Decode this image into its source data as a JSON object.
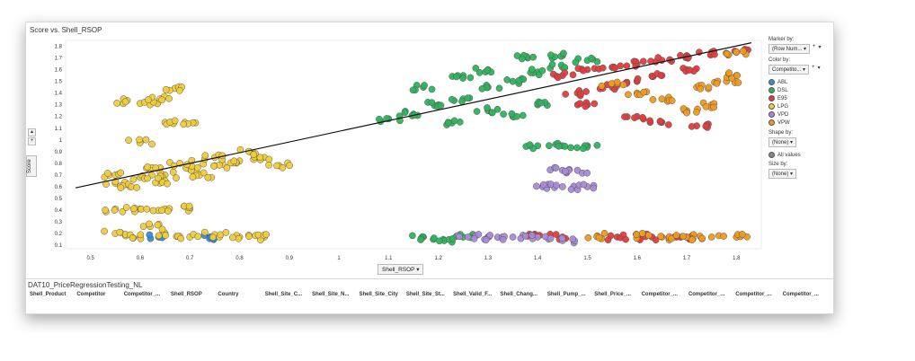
{
  "chart_data": {
    "type": "scatter",
    "title": "Score vs. Shell_RSOP",
    "xlabel": "Shell_RSOP",
    "ylabel": "Score",
    "xlim": [
      0.45,
      1.85
    ],
    "ylim": [
      0.07,
      1.85
    ],
    "x_ticks": [
      "0.5",
      "0.6",
      "0.7",
      "0.8",
      "0.9",
      "1",
      "1.1",
      "1.2",
      "1.3",
      "1.4",
      "1.5",
      "1.6",
      "1.7",
      "1.8"
    ],
    "y_ticks": [
      "0.1",
      "0.2",
      "0.3",
      "0.4",
      "0.5",
      "0.6",
      "0.7",
      "0.8",
      "0.9",
      "1",
      "1.1",
      "1.2",
      "1.3",
      "1.4",
      "1.5",
      "1.6",
      "1.7",
      "1.8"
    ],
    "trend_line": {
      "x": [
        0.47,
        1.83
      ],
      "y": [
        0.59,
        1.83
      ]
    },
    "series": [
      {
        "name": "ABL",
        "color": "#2f8fd8",
        "points": [
          [
            0.64,
            0.17
          ],
          [
            0.74,
            0.17
          ]
        ]
      },
      {
        "name": "DSL",
        "color": "#2db35d",
        "points": [
          [
            1.1,
            1.18
          ],
          [
            1.15,
            1.22
          ],
          [
            1.2,
            1.3
          ],
          [
            1.25,
            1.35
          ],
          [
            1.3,
            1.45
          ],
          [
            1.35,
            1.5
          ],
          [
            1.4,
            1.58
          ],
          [
            1.45,
            1.62
          ],
          [
            1.5,
            1.68
          ],
          [
            1.17,
            1.45
          ],
          [
            1.25,
            1.55
          ],
          [
            1.3,
            1.6
          ],
          [
            1.38,
            1.7
          ],
          [
            1.45,
            1.72
          ],
          [
            1.35,
            1.2
          ],
          [
            1.4,
            1.3
          ],
          [
            1.22,
            1.15
          ],
          [
            1.3,
            1.25
          ],
          [
            1.4,
            0.95
          ],
          [
            1.45,
            0.95
          ],
          [
            1.5,
            0.95
          ],
          [
            1.17,
            0.17
          ],
          [
            1.21,
            0.15
          ],
          [
            1.25,
            0.17
          ]
        ]
      },
      {
        "name": "E95",
        "color": "#e03c3c",
        "points": [
          [
            1.45,
            1.55
          ],
          [
            1.5,
            1.6
          ],
          [
            1.55,
            1.62
          ],
          [
            1.6,
            1.65
          ],
          [
            1.65,
            1.68
          ],
          [
            1.7,
            1.72
          ],
          [
            1.75,
            1.75
          ],
          [
            1.8,
            1.75
          ],
          [
            1.48,
            1.4
          ],
          [
            1.55,
            1.45
          ],
          [
            1.6,
            1.5
          ],
          [
            1.65,
            1.55
          ],
          [
            1.7,
            1.6
          ],
          [
            1.5,
            1.3
          ],
          [
            1.6,
            1.2
          ],
          [
            1.65,
            1.15
          ],
          [
            1.72,
            1.12
          ],
          [
            1.4,
            0.18
          ],
          [
            1.45,
            0.17
          ],
          [
            1.56,
            0.17
          ],
          [
            1.63,
            0.17
          ],
          [
            1.7,
            0.17
          ]
        ]
      },
      {
        "name": "LPG",
        "color": "#f0cc3a",
        "points": [
          [
            0.55,
            0.63
          ],
          [
            0.6,
            0.68
          ],
          [
            0.65,
            0.7
          ],
          [
            0.7,
            0.75
          ],
          [
            0.75,
            0.78
          ],
          [
            0.8,
            0.82
          ],
          [
            0.85,
            0.85
          ],
          [
            0.88,
            0.78
          ],
          [
            0.55,
            0.7
          ],
          [
            0.62,
            0.75
          ],
          [
            0.68,
            0.8
          ],
          [
            0.75,
            0.85
          ],
          [
            0.82,
            0.9
          ],
          [
            0.58,
            0.6
          ],
          [
            0.65,
            0.65
          ],
          [
            0.72,
            0.7
          ],
          [
            0.57,
            1.33
          ],
          [
            0.62,
            1.3
          ],
          [
            0.64,
            1.35
          ],
          [
            0.67,
            1.44
          ],
          [
            0.65,
            1.15
          ],
          [
            0.69,
            1.15
          ],
          [
            0.6,
            0.98
          ],
          [
            0.55,
            0.41
          ],
          [
            0.6,
            0.41
          ],
          [
            0.65,
            0.41
          ],
          [
            0.7,
            0.41
          ],
          [
            0.55,
            0.2
          ],
          [
            0.6,
            0.17
          ],
          [
            0.65,
            0.2
          ],
          [
            0.7,
            0.17
          ],
          [
            0.75,
            0.19
          ],
          [
            0.8,
            0.17
          ],
          [
            0.85,
            0.17
          ],
          [
            0.62,
            0.26
          ]
        ]
      },
      {
        "name": "VPD",
        "color": "#a78bd6",
        "points": [
          [
            1.45,
            0.74
          ],
          [
            1.48,
            0.74
          ],
          [
            1.41,
            0.6
          ],
          [
            1.45,
            0.6
          ],
          [
            1.5,
            0.6
          ],
          [
            1.26,
            0.17
          ],
          [
            1.3,
            0.17
          ],
          [
            1.35,
            0.17
          ],
          [
            1.4,
            0.17
          ],
          [
            1.45,
            0.14
          ]
        ]
      },
      {
        "name": "VPW",
        "color": "#f09a1e",
        "points": [
          [
            1.6,
            1.4
          ],
          [
            1.65,
            1.35
          ],
          [
            1.7,
            1.25
          ],
          [
            1.75,
            1.3
          ],
          [
            1.78,
            1.5
          ],
          [
            1.8,
            1.55
          ],
          [
            1.72,
            1.45
          ],
          [
            1.55,
            1.48
          ],
          [
            1.8,
            1.75
          ],
          [
            1.52,
            0.18
          ],
          [
            1.6,
            0.18
          ],
          [
            1.65,
            0.17
          ],
          [
            1.7,
            0.17
          ],
          [
            1.75,
            0.17
          ],
          [
            1.8,
            0.17
          ]
        ]
      }
    ]
  },
  "legend": {
    "marker_by_label": "Marker by:",
    "marker_by_value": "(Row Num...",
    "color_by_label": "Color by:",
    "color_by_value": "Competito...",
    "shape_by_label": "Shape by:",
    "shape_by_value": "(None)",
    "all_values_label": "All values",
    "size_by_label": "Size by:",
    "size_by_value": "(None)",
    "dropdown_arrow": "▾",
    "add_button": "+"
  },
  "controls": {
    "xaxis_selector": "Shell_RSOP",
    "yaxis_label": "Score"
  },
  "table": {
    "title": "DAT10_PriceRegressionTesting_NL",
    "columns": [
      "Shell_Product",
      "Competitor",
      "Competitor_...",
      "Shell_RSOP",
      "Country",
      "Shell_Site_C...",
      "Shell_Site_N...",
      "Shell_Site_City",
      "Shell_Site_St...",
      "Shell_Valid_F...",
      "Shell_Chang...",
      "Shell_Pump_...",
      "Shell_Price_...",
      "Competitor_...",
      "Competitor_...",
      "Competitor_...",
      "Competitor_..."
    ]
  }
}
